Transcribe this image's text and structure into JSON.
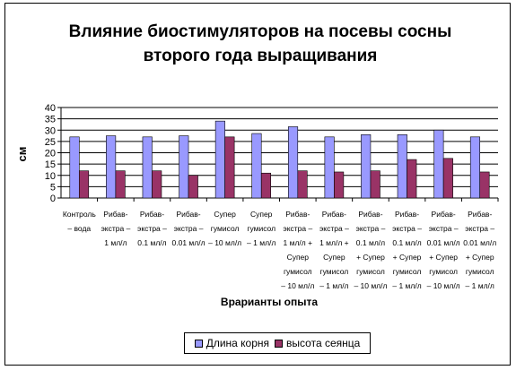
{
  "chart_data": {
    "type": "bar",
    "title": [
      "Влияние биостимуляторов на посевы сосны",
      "второго года выращивания"
    ],
    "xlabel": "Врарианты опыта",
    "ylabel": "см",
    "ylim": [
      0,
      40
    ],
    "yticks": [
      0,
      5,
      10,
      15,
      20,
      25,
      30,
      35,
      40
    ],
    "grid": true,
    "legend_position": "bottom",
    "categories": [
      [
        "Контроль",
        "– вода"
      ],
      [
        "Рибав-",
        "экстра –",
        "1 мл/л"
      ],
      [
        "Рибав-",
        "экстра –",
        "0.1 мл/л"
      ],
      [
        "Рибав-",
        "экстра –",
        "0.01 мл/л"
      ],
      [
        "Супер",
        "гумисол",
        "– 10 мл/л"
      ],
      [
        "Супер",
        "гумисол",
        "– 1 мл/л"
      ],
      [
        "Рибав-",
        "экстра –",
        "1 мл/л +",
        "Супер",
        "гумисол",
        "– 10 мл/л"
      ],
      [
        "Рибав-",
        "экстра –",
        "1 мл/л +",
        "Супер",
        "гумисол",
        "– 1 мл/л"
      ],
      [
        "Рибав-",
        "экстра –",
        "0.1 мл/л",
        "+ Супер",
        "гумисол",
        "– 10 мл/л"
      ],
      [
        "Рибав-",
        "экстра –",
        "0.1 мл/л",
        "+ Супер",
        "гумисол",
        "– 1 мл/л"
      ],
      [
        "Рибав-",
        "экстра –",
        "0.01 мл/л",
        "+ Супер",
        "гумисол",
        "– 10 мл/л"
      ],
      [
        "Рибав-",
        "экстра –",
        "0.01 мл/л",
        "+ Супер",
        "гумисол",
        "– 1 мл/л"
      ]
    ],
    "series": [
      {
        "name": "Длина корня",
        "color": "#9999ff",
        "values": [
          27,
          27.5,
          27,
          27.5,
          34,
          28.5,
          31.5,
          27,
          28,
          28,
          30,
          27
        ]
      },
      {
        "name": "высота сеянца",
        "color": "#993366",
        "values": [
          12,
          12,
          12,
          10,
          27,
          11,
          12,
          11.5,
          12,
          17,
          17.5,
          11.5
        ]
      }
    ]
  }
}
